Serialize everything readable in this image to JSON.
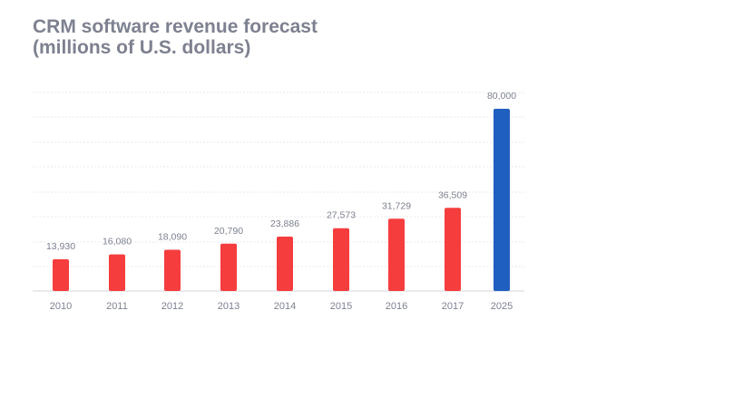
{
  "header": {
    "title_line1": "CRM software revenue forecast",
    "title_line2": "(millions of U.S. dollars)"
  },
  "chart_data": {
    "type": "bar",
    "title": "CRM software revenue forecast (millions of U.S. dollars)",
    "xlabel": "",
    "ylabel": "",
    "ylim": [
      0,
      80000
    ],
    "grid": true,
    "categories": [
      "2010",
      "2011",
      "2012",
      "2013",
      "2014",
      "2015",
      "2016",
      "2017",
      "2025"
    ],
    "values": [
      13930,
      16080,
      18090,
      20790,
      23886,
      27573,
      31729,
      36509,
      80000
    ],
    "data_labels": [
      "13,930",
      "16,080",
      "18,090",
      "20,790",
      "23,886",
      "27,573",
      "31,729",
      "36,509",
      "80,000"
    ],
    "bar_colors": [
      "#f53d3d",
      "#f53d3d",
      "#f53d3d",
      "#f53d3d",
      "#f53d3d",
      "#f53d3d",
      "#f53d3d",
      "#f53d3d",
      "#1f5fbf"
    ]
  },
  "colors": {
    "actual_bar": "#f53d3d",
    "forecast_bar": "#1f5fbf",
    "title": "#7d8190",
    "labels": "#7d8190",
    "grid": "#e8e8ec"
  }
}
